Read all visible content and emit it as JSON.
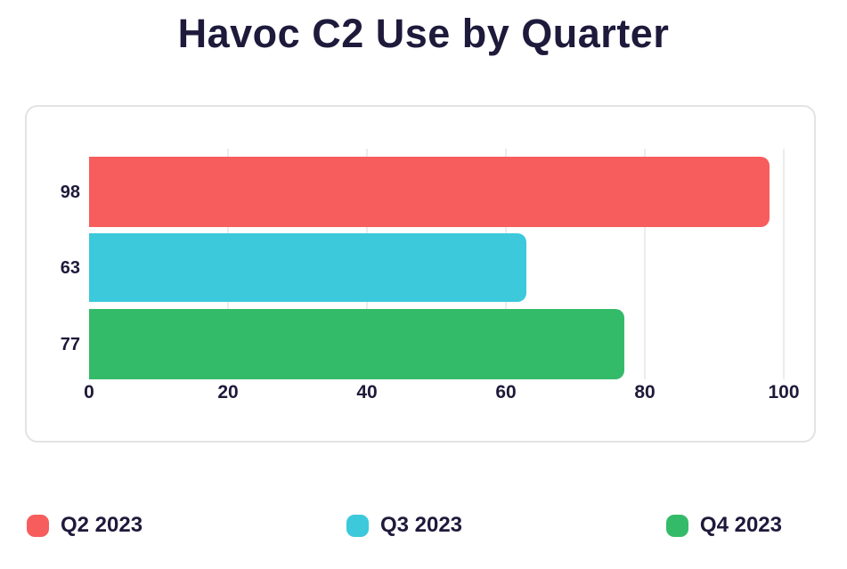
{
  "title": "Havoc C2 Use by Quarter",
  "chart_data": {
    "type": "bar",
    "orientation": "horizontal",
    "title": "Havoc C2 Use by Quarter",
    "categories": [
      "Q2 2023",
      "Q3 2023",
      "Q4 2023"
    ],
    "values": [
      98,
      63,
      77
    ],
    "value_labels": [
      "98",
      "63",
      "77"
    ],
    "colors": [
      "#f75d5d",
      "#3bc9db",
      "#34bb69"
    ],
    "x_ticks": [
      "0",
      "20",
      "40",
      "60",
      "80",
      "100"
    ],
    "x_tick_values": [
      0,
      20,
      40,
      60,
      80,
      100
    ],
    "xlim": [
      0,
      100
    ],
    "grid": true,
    "gridline_values": [
      20,
      40,
      60,
      80,
      100
    ],
    "legend_position": "bottom",
    "legend_entries": [
      "Q2 2023",
      "Q3 2023",
      "Q4 2023"
    ]
  },
  "colors": {
    "text": "#1e1a3b",
    "background": "#ffffff",
    "panel_border": "#e3e3e3",
    "gridline": "#ececec"
  }
}
